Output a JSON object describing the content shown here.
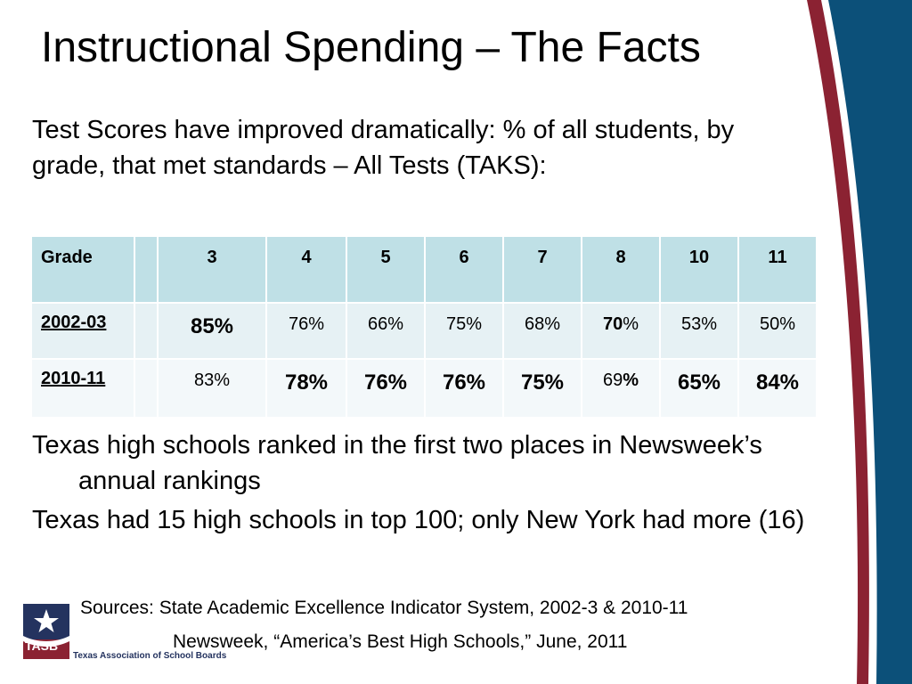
{
  "slide": {
    "title": "Instructional Spending – The Facts",
    "intro": "Test Scores have improved dramatically: % of all students, by grade, that met standards – All Tests (TAKS):"
  },
  "table": {
    "header": {
      "label": "Grade",
      "grades": [
        "3",
        "4",
        "5",
        "6",
        "7",
        "8",
        "10",
        "11"
      ]
    },
    "rows": [
      {
        "year": "2002-03",
        "g3": "85%",
        "g4": "76%",
        "g5": "66%",
        "g6": "75%",
        "g7": "68%",
        "g8_num": "70",
        "g8_pct": "%",
        "g10": "53%",
        "g11": "50%"
      },
      {
        "year": "2010-11",
        "g3": "83%",
        "g4": "78%",
        "g5": "76%",
        "g6": "76%",
        "g7": "75%",
        "g8_num": "69",
        "g8_pct": "%",
        "g10": "65%",
        "g11": "84%"
      }
    ]
  },
  "bullets": [
    "Texas high schools ranked in the first two places in Newsweek’s annual rankings",
    "Texas had 15 high schools in top 100; only New York had more (16)"
  ],
  "sources": {
    "line1": "Sources: State Academic Excellence Indicator System, 2002-3 & 2010-11",
    "line2": "Newsweek, “America’s Best High Schools,” June, 2011"
  },
  "logo": {
    "acronym": "TASB",
    "name": "Texas Association of School Boards"
  },
  "colors": {
    "header_fill": "#bfe0e6",
    "row1_fill": "#e6f1f4",
    "row2_fill": "#f3f8fa",
    "swoosh_maroon": "#8b2232",
    "swoosh_blue": "#0c5079",
    "logo_navy": "#24335f"
  }
}
